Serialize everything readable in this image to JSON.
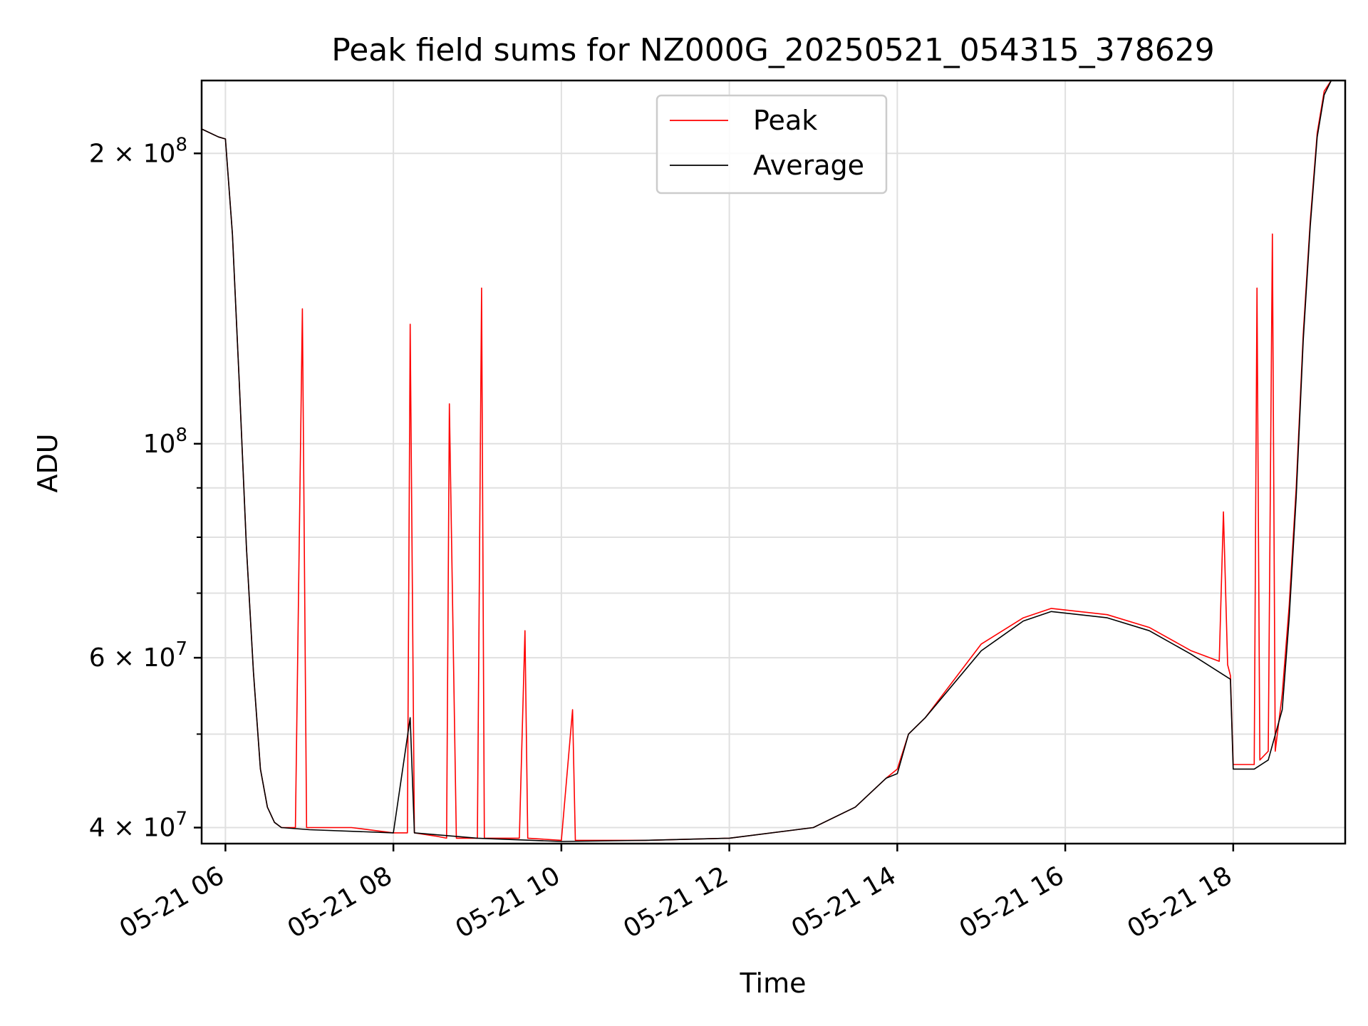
{
  "chart_data": {
    "type": "line",
    "title": "Peak field sums for NZ000G_20250521_054315_378629",
    "xlabel": "Time",
    "ylabel": "ADU",
    "x_range": [
      "2025-05-21 05:43",
      "2025-05-21 19:20"
    ],
    "x_ticks": [
      "05-21 06",
      "05-21 08",
      "05-21 10",
      "05-21 12",
      "05-21 14",
      "05-21 16",
      "05-21 18"
    ],
    "y_scale": "log",
    "ylim": [
      38500000,
      238000000
    ],
    "y_major_ticks": [
      {
        "value": 40000000,
        "label": "4 × 10^7"
      },
      {
        "value": 60000000,
        "label": "6 × 10^7"
      },
      {
        "value": 100000000,
        "label": "10^8"
      },
      {
        "value": 200000000,
        "label": "2 × 10^8"
      }
    ],
    "y_minor_ticks": [
      50000000,
      70000000,
      80000000,
      90000000
    ],
    "grid": true,
    "legend_position": "top-center",
    "series": [
      {
        "name": "Peak",
        "color": "#ff0000",
        "x": [
          "2025-05-21 05:43",
          "2025-05-21 05:55",
          "2025-05-21 06:00",
          "2025-05-21 06:05",
          "2025-05-21 06:10",
          "2025-05-21 06:15",
          "2025-05-21 06:20",
          "2025-05-21 06:25",
          "2025-05-21 06:30",
          "2025-05-21 06:35",
          "2025-05-21 06:40",
          "2025-05-21 06:50",
          "2025-05-21 06:55",
          "2025-05-21 06:58",
          "2025-05-21 07:00",
          "2025-05-21 07:30",
          "2025-05-21 08:00",
          "2025-05-21 08:10",
          "2025-05-21 08:12",
          "2025-05-21 08:15",
          "2025-05-21 08:30",
          "2025-05-21 08:38",
          "2025-05-21 08:40",
          "2025-05-21 08:45",
          "2025-05-21 09:00",
          "2025-05-21 09:03",
          "2025-05-21 09:05",
          "2025-05-21 09:30",
          "2025-05-21 09:34",
          "2025-05-21 09:36",
          "2025-05-21 10:00",
          "2025-05-21 10:08",
          "2025-05-21 10:10",
          "2025-05-21 11:00",
          "2025-05-21 12:00",
          "2025-05-21 13:00",
          "2025-05-21 13:30",
          "2025-05-21 13:52",
          "2025-05-21 14:00",
          "2025-05-21 14:08",
          "2025-05-21 14:20",
          "2025-05-21 15:00",
          "2025-05-21 15:30",
          "2025-05-21 15:50",
          "2025-05-21 16:30",
          "2025-05-21 17:00",
          "2025-05-21 17:30",
          "2025-05-21 17:50",
          "2025-05-21 17:53",
          "2025-05-21 17:56",
          "2025-05-21 17:58",
          "2025-05-21 18:00",
          "2025-05-21 18:15",
          "2025-05-21 18:17",
          "2025-05-21 18:19",
          "2025-05-21 18:25",
          "2025-05-21 18:28",
          "2025-05-21 18:30",
          "2025-05-21 18:35",
          "2025-05-21 18:40",
          "2025-05-21 18:45",
          "2025-05-21 18:50",
          "2025-05-21 18:55",
          "2025-05-21 19:00",
          "2025-05-21 19:05",
          "2025-05-21 19:10",
          "2025-05-21 19:20"
        ],
        "y": [
          212000000,
          208000000,
          207000000,
          165000000,
          115000000,
          78000000,
          58000000,
          46000000,
          42000000,
          40500000,
          40000000,
          40000000,
          138000000,
          40000000,
          40000000,
          40000000,
          39500000,
          39500000,
          133000000,
          39500000,
          39200000,
          39000000,
          110000000,
          39000000,
          39000000,
          145000000,
          39000000,
          39000000,
          64000000,
          39000000,
          38800000,
          53000000,
          38800000,
          38800000,
          39000000,
          40000000,
          42000000,
          45000000,
          46000000,
          50000000,
          52000000,
          62000000,
          66000000,
          67500000,
          66500000,
          64500000,
          61000000,
          59500000,
          85000000,
          59000000,
          57500000,
          46500000,
          46500000,
          145000000,
          47000000,
          48000000,
          165000000,
          48000000,
          55000000,
          68000000,
          90000000,
          130000000,
          170000000,
          210000000,
          232000000,
          238000000,
          238000000
        ]
      },
      {
        "name": "Average",
        "color": "#000000",
        "x": [
          "2025-05-21 05:43",
          "2025-05-21 05:55",
          "2025-05-21 06:00",
          "2025-05-21 06:05",
          "2025-05-21 06:10",
          "2025-05-21 06:15",
          "2025-05-21 06:20",
          "2025-05-21 06:25",
          "2025-05-21 06:30",
          "2025-05-21 06:35",
          "2025-05-21 06:40",
          "2025-05-21 07:00",
          "2025-05-21 08:00",
          "2025-05-21 08:12",
          "2025-05-21 08:15",
          "2025-05-21 09:00",
          "2025-05-21 10:00",
          "2025-05-21 11:00",
          "2025-05-21 12:00",
          "2025-05-21 13:00",
          "2025-05-21 13:30",
          "2025-05-21 13:52",
          "2025-05-21 14:00",
          "2025-05-21 14:08",
          "2025-05-21 14:20",
          "2025-05-21 15:00",
          "2025-05-21 15:30",
          "2025-05-21 15:50",
          "2025-05-21 16:30",
          "2025-05-21 17:00",
          "2025-05-21 17:30",
          "2025-05-21 17:58",
          "2025-05-21 18:00",
          "2025-05-21 18:15",
          "2025-05-21 18:25",
          "2025-05-21 18:35",
          "2025-05-21 18:40",
          "2025-05-21 18:45",
          "2025-05-21 18:50",
          "2025-05-21 18:55",
          "2025-05-21 19:00",
          "2025-05-21 19:05",
          "2025-05-21 19:10",
          "2025-05-21 19:20"
        ],
        "y": [
          212000000,
          208000000,
          207000000,
          165000000,
          115000000,
          78000000,
          58000000,
          46000000,
          42000000,
          40500000,
          40000000,
          39800000,
          39500000,
          52000000,
          39500000,
          39000000,
          38700000,
          38800000,
          39000000,
          40000000,
          42000000,
          45000000,
          45500000,
          50000000,
          52000000,
          61000000,
          65500000,
          67000000,
          66000000,
          64000000,
          60500000,
          57000000,
          46000000,
          46000000,
          47000000,
          53000000,
          66000000,
          88000000,
          128000000,
          168000000,
          208000000,
          230000000,
          238000000,
          238000000
        ]
      }
    ]
  }
}
